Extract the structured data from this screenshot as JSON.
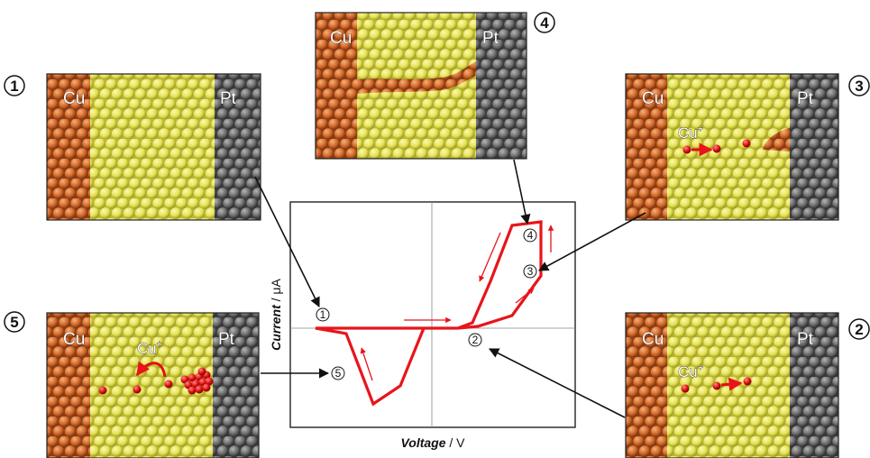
{
  "colors": {
    "copper": "#d06a2a",
    "electrolyte": "#e6e35a",
    "platinum": "#6b6b6b",
    "ion": "#e01010",
    "curve": "#e8141b",
    "frame": "#222222"
  },
  "electrodes": {
    "left": "Cu",
    "right": "Pt"
  },
  "ion_label": {
    "base": "Cu",
    "charge": "+"
  },
  "panels": [
    {
      "id": "1",
      "badge": "1",
      "copper_filament": "none",
      "ions": "none"
    },
    {
      "id": "2",
      "badge": "2",
      "copper_filament": "none",
      "ions": "drifting toward Pt"
    },
    {
      "id": "3",
      "badge": "3",
      "copper_filament": "partial, growing from Pt",
      "ions": "drifting toward Pt"
    },
    {
      "id": "4",
      "badge": "4",
      "copper_filament": "complete bridge Cu to Pt",
      "ions": "none"
    },
    {
      "id": "5",
      "badge": "5",
      "copper_filament": "dissolving cluster near Pt",
      "ions": "drifting back toward Cu"
    }
  ],
  "chart": {
    "xlabel_italic": "Voltage",
    "xlabel_unit": " / V",
    "ylabel_italic": "Current",
    "ylabel_unit": " / μA",
    "markers": [
      "1",
      "2",
      "3",
      "4",
      "5"
    ]
  }
}
